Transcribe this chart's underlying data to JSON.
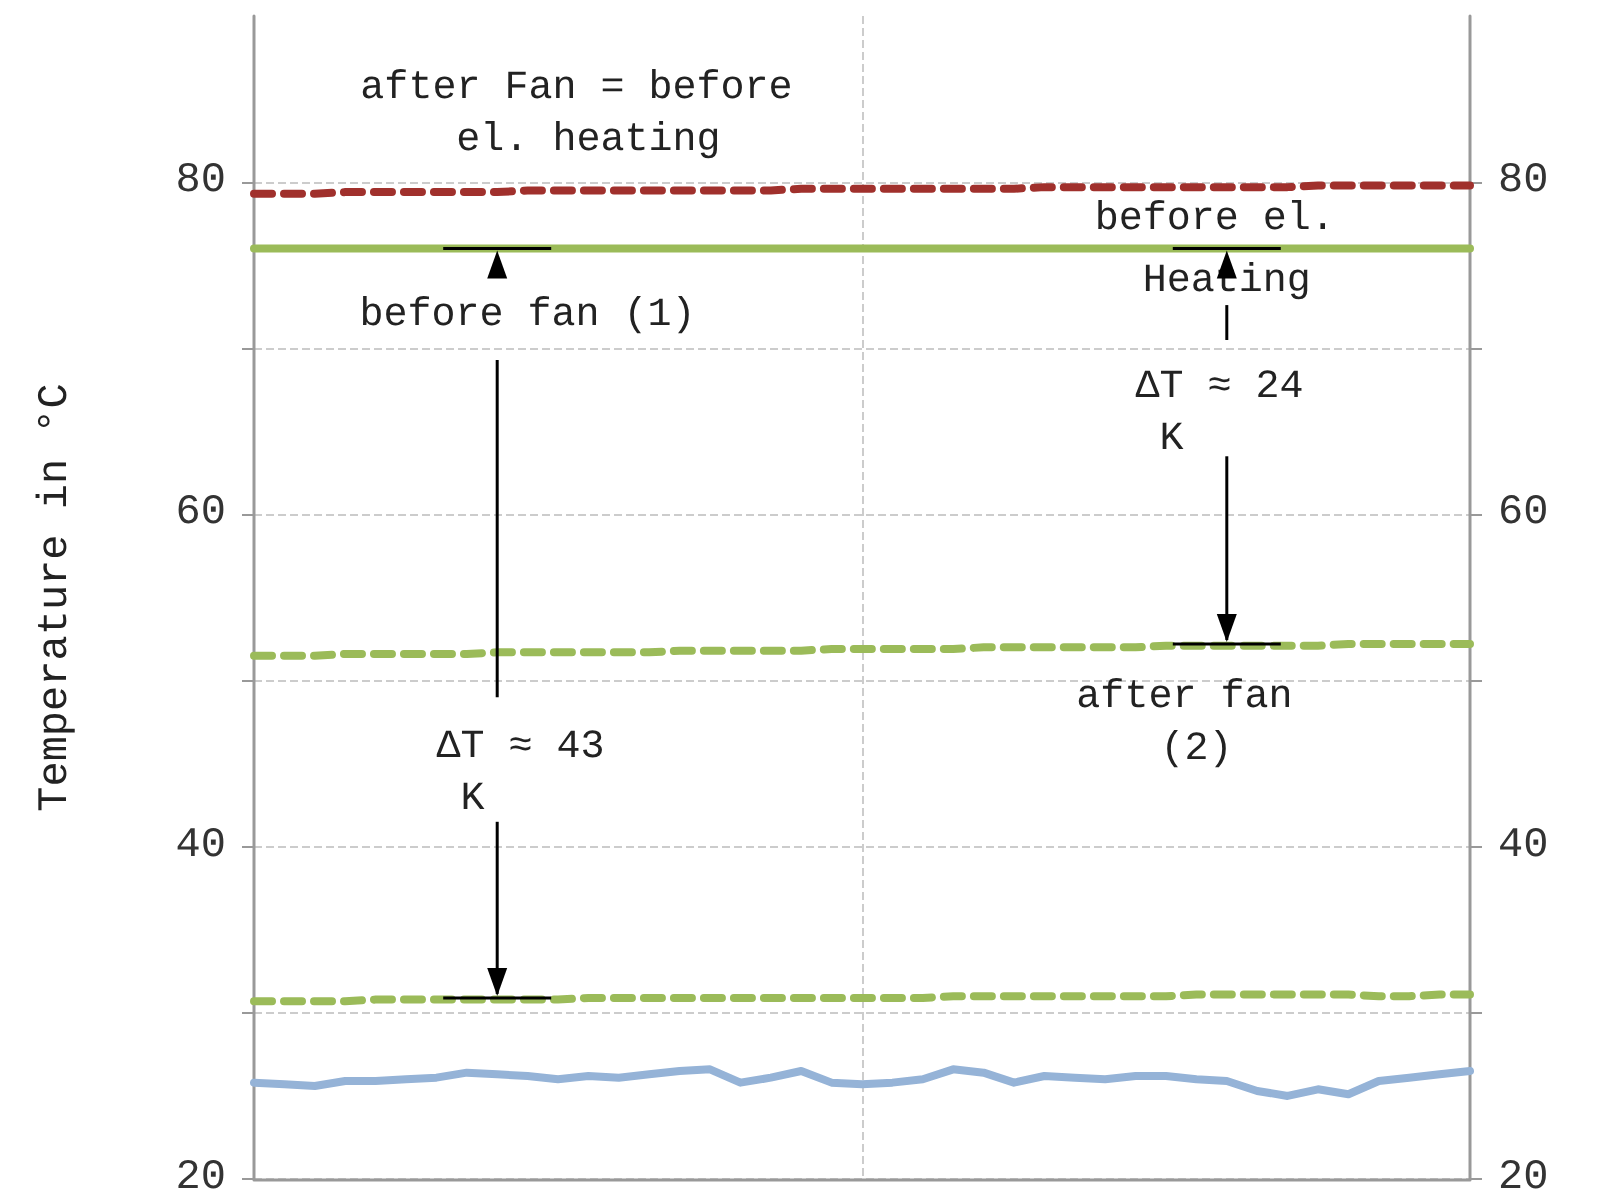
{
  "chart_data": {
    "type": "line",
    "ylabel": "Temperature in °C",
    "categories": [
      null,
      null,
      null,
      null,
      null,
      null,
      null,
      null,
      null,
      null,
      null,
      null,
      null,
      null,
      null,
      null,
      null,
      null,
      null,
      null,
      null,
      null,
      null,
      null,
      null,
      null,
      null,
      null,
      null,
      null,
      null,
      null,
      null,
      null,
      null,
      null,
      null,
      null,
      null,
      null,
      null
    ],
    "series": [
      {
        "color": "#a0302c",
        "line_style": "dashed",
        "values": [
          79.3,
          79.3,
          79.3,
          79.4,
          79.4,
          79.4,
          79.4,
          79.4,
          79.4,
          79.5,
          79.5,
          79.5,
          79.5,
          79.5,
          79.5,
          79.5,
          79.5,
          79.5,
          79.6,
          79.6,
          79.6,
          79.6,
          79.6,
          79.6,
          79.6,
          79.6,
          79.7,
          79.7,
          79.7,
          79.7,
          79.7,
          79.7,
          79.7,
          79.7,
          79.7,
          79.8,
          79.8,
          79.8,
          79.8,
          79.8,
          79.8
        ]
      },
      {
        "color": "#9bbb59",
        "line_style": "solid",
        "values": [
          76,
          76,
          76,
          76,
          76,
          76,
          76,
          76,
          76,
          76,
          76,
          76,
          76,
          76,
          76,
          76,
          76,
          76,
          76,
          76,
          76,
          76,
          76,
          76,
          76,
          76,
          76,
          76,
          76,
          76,
          76,
          76,
          76,
          76,
          76,
          76,
          76,
          76,
          76,
          76,
          76
        ]
      },
      {
        "color": "#9bbb59",
        "line_style": "dashed",
        "values": [
          51.5,
          51.5,
          51.5,
          51.6,
          51.6,
          51.6,
          51.6,
          51.6,
          51.7,
          51.7,
          51.7,
          51.7,
          51.7,
          51.7,
          51.8,
          51.8,
          51.8,
          51.8,
          51.8,
          51.9,
          51.9,
          51.9,
          51.9,
          51.9,
          52,
          52,
          52,
          52,
          52,
          52,
          52.1,
          52.1,
          52.1,
          52.1,
          52.1,
          52.1,
          52.2,
          52.2,
          52.2,
          52.2,
          52.2
        ]
      },
      {
        "color": "#9bbb59",
        "line_style": "dashed",
        "values": [
          30.7,
          30.7,
          30.7,
          30.7,
          30.8,
          30.8,
          30.8,
          30.8,
          30.8,
          30.8,
          30.8,
          30.9,
          30.9,
          30.9,
          30.9,
          30.9,
          30.9,
          30.9,
          30.9,
          30.9,
          30.9,
          30.9,
          30.9,
          31,
          31,
          31,
          31,
          31,
          31,
          31,
          31,
          31.1,
          31.1,
          31.1,
          31.1,
          31.1,
          31.1,
          31,
          31,
          31.1,
          31.1
        ]
      },
      {
        "color": "#95b3d7",
        "line_style": "solid",
        "values": [
          25.8,
          25.7,
          25.6,
          25.9,
          25.9,
          26,
          26.1,
          26.4,
          26.3,
          26.2,
          26,
          26.2,
          26.1,
          26.3,
          26.5,
          26.6,
          25.8,
          26.1,
          26.5,
          25.8,
          25.7,
          25.8,
          26,
          26.6,
          26.4,
          25.8,
          26.2,
          26.1,
          26,
          26.2,
          26.2,
          26,
          25.9,
          25.3,
          25,
          25.4,
          25.1,
          25.9,
          26.1,
          26.3,
          26.5
        ]
      }
    ],
    "ylim": [
      20,
      90
    ],
    "yticks": [
      20,
      {
        "value": 30,
        "label": null
      },
      40,
      {
        "value": 50,
        "label": null
      },
      60,
      {
        "value": 70,
        "label": null
      },
      80
    ],
    "y2lim": [
      20,
      90
    ],
    "y2ticks": [
      20,
      {
        "value": 30,
        "label": null
      },
      40,
      {
        "value": 50,
        "label": null
      },
      60,
      {
        "value": 70,
        "label": null
      },
      80
    ],
    "grid": true,
    "marker": "none",
    "annotations": [
      "after Fan = before el. heating",
      "before fan (1)",
      "ΔT ≈ 43 K",
      "before el. Heating",
      "ΔT ≈ 24 K",
      "after fan (2)"
    ]
  }
}
